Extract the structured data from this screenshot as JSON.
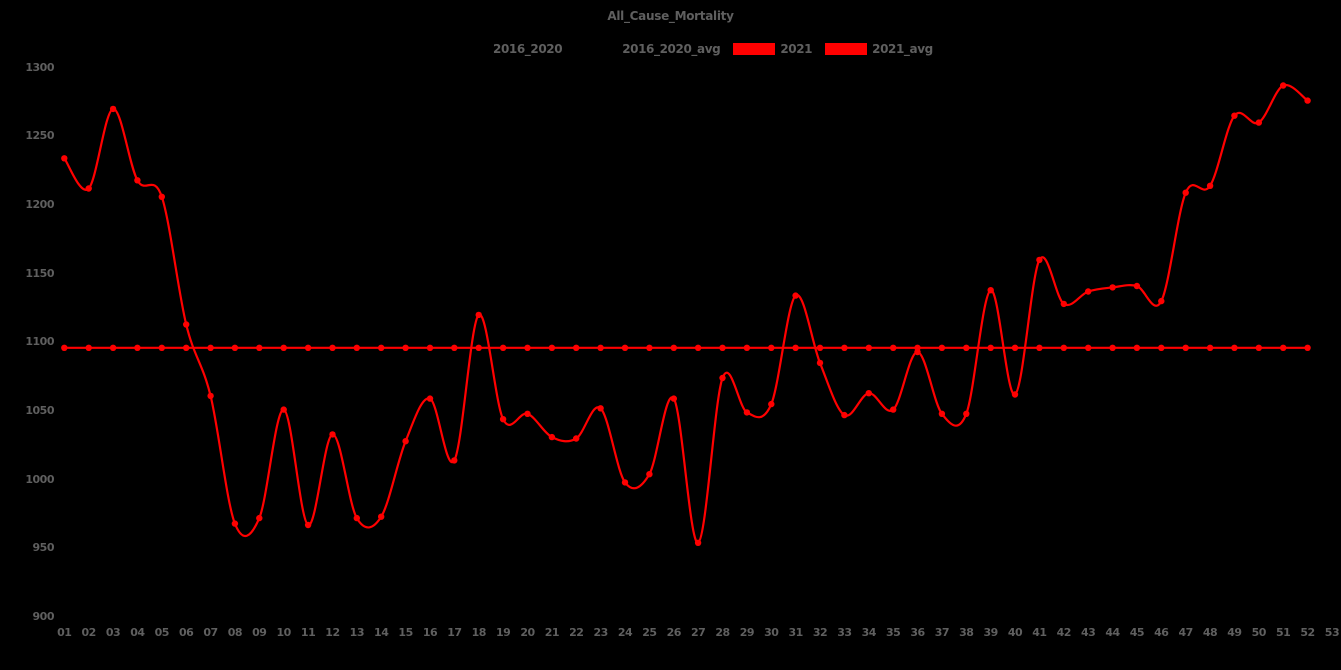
{
  "chart_data": {
    "type": "line",
    "title": "All_Cause_Mortality",
    "background_color": "#000000",
    "text_color": "#5f5f5f",
    "accent_color": "#ff0000",
    "grid": false,
    "xlabel": "",
    "ylabel": "",
    "ylim": [
      900,
      1300
    ],
    "y_ticks": [
      900,
      950,
      1000,
      1050,
      1100,
      1150,
      1200,
      1250,
      1300
    ],
    "x_tick_labels": [
      "01",
      "02",
      "03",
      "04",
      "05",
      "06",
      "07",
      "08",
      "09",
      "10",
      "11",
      "12",
      "13",
      "14",
      "15",
      "16",
      "17",
      "18",
      "19",
      "20",
      "21",
      "22",
      "23",
      "24",
      "25",
      "26",
      "27",
      "28",
      "29",
      "30",
      "31",
      "32",
      "33",
      "34",
      "35",
      "36",
      "37",
      "38",
      "39",
      "40",
      "41",
      "42",
      "43",
      "44",
      "45",
      "46",
      "47",
      "48",
      "49",
      "50",
      "51",
      "52",
      "53"
    ],
    "legend": {
      "position": "top",
      "items": [
        {
          "label": "2016_2020",
          "color": "#000000"
        },
        {
          "label": "2016_2020_avg",
          "color": "#000000"
        },
        {
          "label": "2021",
          "color": "#ff0000"
        },
        {
          "label": "2021_avg",
          "color": "#ff0000"
        }
      ]
    },
    "series": [
      {
        "name": "2021",
        "color": "#ff0000",
        "marker": "circle",
        "smooth": true,
        "weeks": [
          1,
          2,
          3,
          4,
          5,
          6,
          7,
          8,
          9,
          10,
          11,
          12,
          13,
          14,
          15,
          16,
          17,
          18,
          19,
          20,
          21,
          22,
          23,
          24,
          25,
          26,
          27,
          28,
          29,
          30,
          31,
          32,
          33,
          34,
          35,
          36,
          37,
          38,
          39,
          40,
          41,
          42,
          43,
          44,
          45,
          46,
          47,
          48,
          49,
          50,
          51,
          52
        ],
        "values": [
          1234,
          1212,
          1270,
          1218,
          1206,
          1113,
          1061,
          968,
          972,
          1051,
          967,
          1033,
          972,
          973,
          1028,
          1059,
          1014,
          1120,
          1044,
          1048,
          1031,
          1030,
          1052,
          998,
          1004,
          1059,
          954,
          1074,
          1049,
          1055,
          1134,
          1085,
          1047,
          1063,
          1051,
          1093,
          1048,
          1048,
          1138,
          1062,
          1160,
          1128,
          1137,
          1140,
          1141,
          1130,
          1209,
          1214,
          1265,
          1260,
          1287,
          1276
        ]
      },
      {
        "name": "2021_avg",
        "color": "#ff0000",
        "marker": "circle",
        "smooth": false,
        "constant_value": 1096,
        "week_start": 1,
        "week_end": 52
      }
    ],
    "hidden_series_note": "Legend entries 2016_2020 and 2016_2020_avg have black swatches and are not visible against the black background"
  }
}
